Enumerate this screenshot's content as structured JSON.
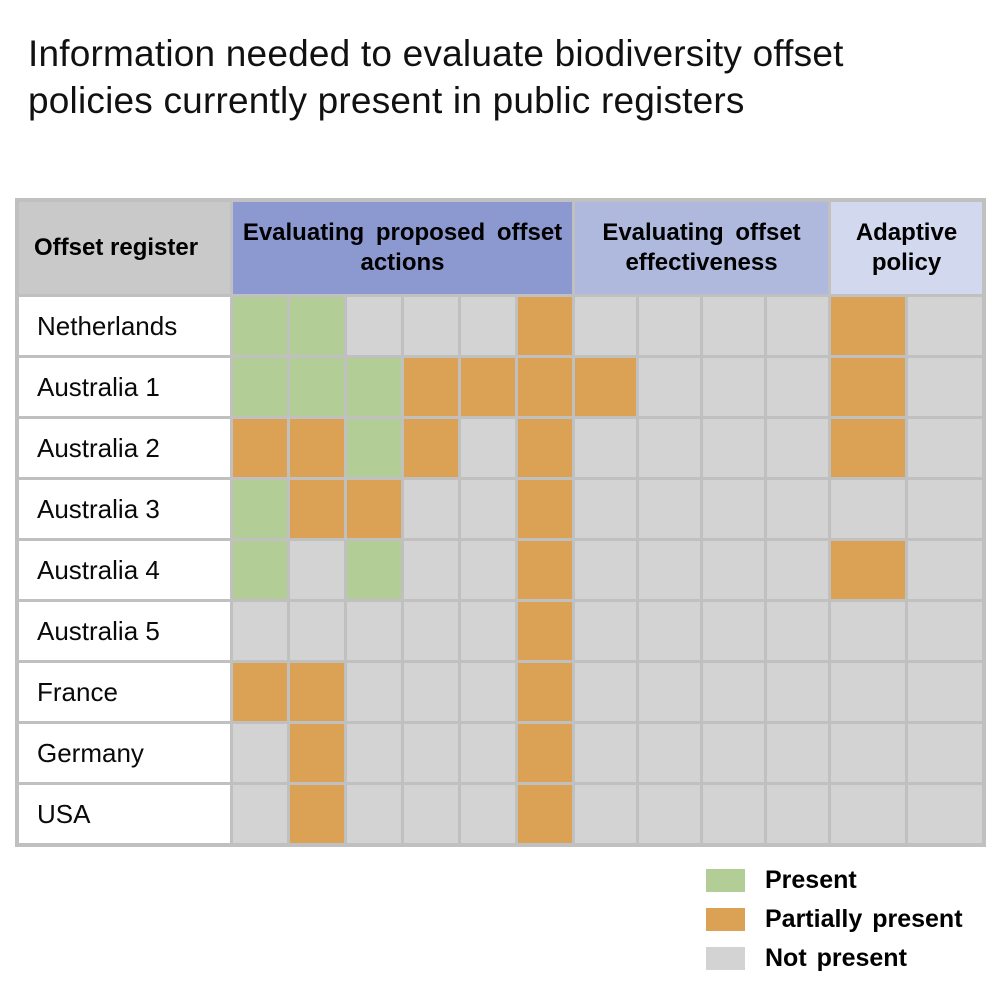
{
  "title": "Information needed to evaluate biodiversity offset policies currently present in public registers",
  "colors": {
    "present": "#b2cd96",
    "partial": "#dba155",
    "none": "#d3d3d3",
    "grid_gap": "#c0c0c0",
    "row_label_bg": "#ffffff",
    "corner_header_bg": "#c9c9c9",
    "group_bgs": [
      "#8b99d0",
      "#aeb9dd",
      "#d2d8ee"
    ],
    "title_text": "#111111"
  },
  "table": {
    "corner_header": "Offset register",
    "groups": [
      {
        "label": "Evaluating proposed offset actions",
        "columns": 6,
        "bg": "#8b99d0"
      },
      {
        "label": "Evaluating offset effectiveness",
        "columns": 4,
        "bg": "#aeb9dd"
      },
      {
        "label": "Adaptive policy",
        "columns": 2,
        "bg": "#d2d8ee"
      }
    ],
    "rows": [
      {
        "label": "Netherlands",
        "cells": [
          "present",
          "present",
          "none",
          "none",
          "none",
          "partial",
          "none",
          "none",
          "none",
          "none",
          "partial",
          "none"
        ]
      },
      {
        "label": "Australia 1",
        "cells": [
          "present",
          "present",
          "present",
          "partial",
          "partial",
          "partial",
          "partial",
          "none",
          "none",
          "none",
          "partial",
          "none"
        ]
      },
      {
        "label": "Australia 2",
        "cells": [
          "partial",
          "partial",
          "present",
          "partial",
          "none",
          "partial",
          "none",
          "none",
          "none",
          "none",
          "partial",
          "none"
        ]
      },
      {
        "label": "Australia 3",
        "cells": [
          "present",
          "partial",
          "partial",
          "none",
          "none",
          "partial",
          "none",
          "none",
          "none",
          "none",
          "none",
          "none"
        ]
      },
      {
        "label": "Australia 4",
        "cells": [
          "present",
          "none",
          "present",
          "none",
          "none",
          "partial",
          "none",
          "none",
          "none",
          "none",
          "partial",
          "none"
        ]
      },
      {
        "label": "Australia 5",
        "cells": [
          "none",
          "none",
          "none",
          "none",
          "none",
          "partial",
          "none",
          "none",
          "none",
          "none",
          "none",
          "none"
        ]
      },
      {
        "label": "France",
        "cells": [
          "partial",
          "partial",
          "none",
          "none",
          "none",
          "partial",
          "none",
          "none",
          "none",
          "none",
          "none",
          "none"
        ]
      },
      {
        "label": "Germany",
        "cells": [
          "none",
          "partial",
          "none",
          "none",
          "none",
          "partial",
          "none",
          "none",
          "none",
          "none",
          "none",
          "none"
        ]
      },
      {
        "label": "USA",
        "cells": [
          "none",
          "partial",
          "none",
          "none",
          "none",
          "partial",
          "none",
          "none",
          "none",
          "none",
          "none",
          "none"
        ]
      }
    ]
  },
  "legend": {
    "items": [
      {
        "label": "Present",
        "state": "present",
        "color": "#b2cd96"
      },
      {
        "label": "Partially present",
        "state": "partial",
        "color": "#dba155"
      },
      {
        "label": "Not present",
        "state": "none",
        "color": "#d3d3d3"
      }
    ]
  },
  "chart_data": {
    "type": "heatmap",
    "title": "Information needed to evaluate biodiversity offset policies currently present in public registers",
    "y_categories": [
      "Netherlands",
      "Australia 1",
      "Australia 2",
      "Australia 3",
      "Australia 4",
      "Australia 5",
      "France",
      "Germany",
      "USA"
    ],
    "column_groups": [
      {
        "label": "Evaluating proposed offset actions",
        "n_columns": 6
      },
      {
        "label": "Evaluating offset effectiveness",
        "n_columns": 4
      },
      {
        "label": "Adaptive policy",
        "n_columns": 2
      }
    ],
    "value_levels": {
      "present": "Present",
      "partial": "Partially present",
      "none": "Not present"
    },
    "matrix": [
      [
        "present",
        "present",
        "none",
        "none",
        "none",
        "partial",
        "none",
        "none",
        "none",
        "none",
        "partial",
        "none"
      ],
      [
        "present",
        "present",
        "present",
        "partial",
        "partial",
        "partial",
        "partial",
        "none",
        "none",
        "none",
        "partial",
        "none"
      ],
      [
        "partial",
        "partial",
        "present",
        "partial",
        "none",
        "partial",
        "none",
        "none",
        "none",
        "none",
        "partial",
        "none"
      ],
      [
        "present",
        "partial",
        "partial",
        "none",
        "none",
        "partial",
        "none",
        "none",
        "none",
        "none",
        "none",
        "none"
      ],
      [
        "present",
        "none",
        "present",
        "none",
        "none",
        "partial",
        "none",
        "none",
        "none",
        "none",
        "partial",
        "none"
      ],
      [
        "none",
        "none",
        "none",
        "none",
        "none",
        "partial",
        "none",
        "none",
        "none",
        "none",
        "none",
        "none"
      ],
      [
        "partial",
        "partial",
        "none",
        "none",
        "none",
        "partial",
        "none",
        "none",
        "none",
        "none",
        "none",
        "none"
      ],
      [
        "none",
        "partial",
        "none",
        "none",
        "none",
        "partial",
        "none",
        "none",
        "none",
        "none",
        "none",
        "none"
      ],
      [
        "none",
        "partial",
        "none",
        "none",
        "none",
        "partial",
        "none",
        "none",
        "none",
        "none",
        "none",
        "none"
      ]
    ],
    "legend_position": "bottom-right",
    "grid": true
  }
}
